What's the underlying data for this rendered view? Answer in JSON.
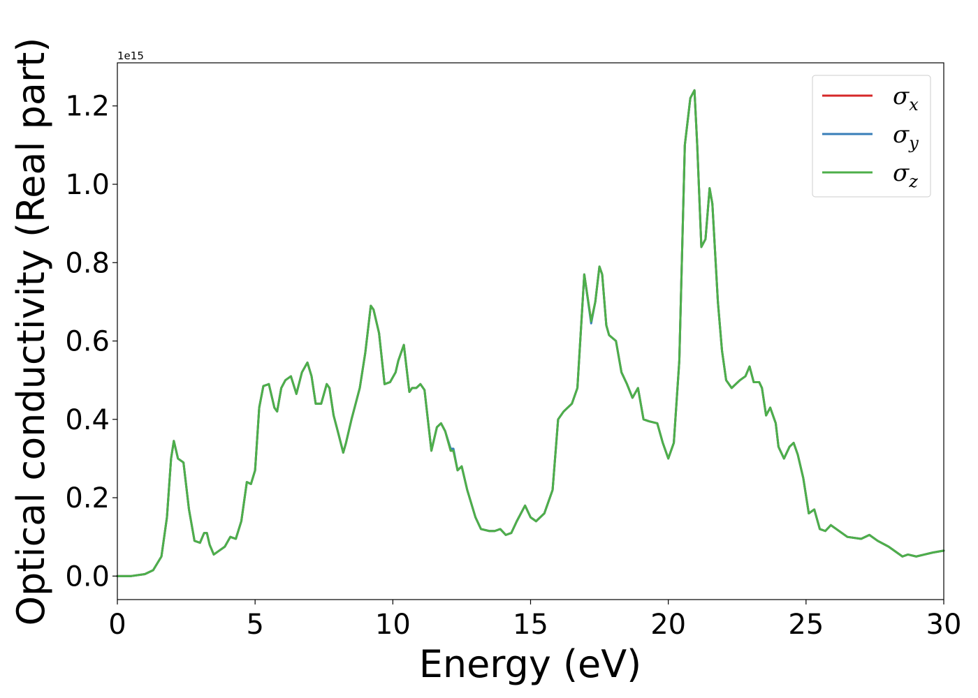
{
  "chart_data": {
    "type": "line",
    "title": "",
    "xlabel": "Energy (eV)",
    "ylabel": "Optical conductivity (Real part)",
    "y_offset_label": "1e15",
    "y_unit_scale": 1000000000000000.0,
    "xlim": [
      0,
      30
    ],
    "ylim": [
      -0.06,
      1.31
    ],
    "xticks": [
      0,
      5,
      10,
      15,
      20,
      25,
      30
    ],
    "xtick_labels": [
      "0",
      "5",
      "10",
      "15",
      "20",
      "25",
      "30"
    ],
    "yticks": [
      0.0,
      0.2,
      0.4,
      0.6,
      0.8,
      1.0,
      1.2
    ],
    "ytick_labels": [
      "0.0",
      "0.2",
      "0.4",
      "0.6",
      "0.8",
      "1.0",
      "1.2"
    ],
    "grid": false,
    "legend_position": "top-right",
    "x": [
      0,
      0.5,
      1.0,
      1.3,
      1.6,
      1.8,
      1.95,
      2.05,
      2.2,
      2.4,
      2.6,
      2.8,
      3.0,
      3.15,
      3.25,
      3.35,
      3.5,
      3.7,
      3.9,
      4.1,
      4.3,
      4.5,
      4.7,
      4.85,
      5.0,
      5.15,
      5.3,
      5.5,
      5.7,
      5.8,
      5.95,
      6.1,
      6.3,
      6.5,
      6.7,
      6.9,
      7.05,
      7.2,
      7.4,
      7.6,
      7.7,
      7.85,
      8.0,
      8.2,
      8.3,
      8.5,
      8.8,
      9.0,
      9.2,
      9.3,
      9.5,
      9.7,
      9.9,
      10.1,
      10.2,
      10.4,
      10.6,
      10.7,
      10.85,
      11.0,
      11.15,
      11.4,
      11.6,
      11.75,
      11.9,
      12.1,
      12.2,
      12.35,
      12.5,
      12.7,
      13.0,
      13.2,
      13.5,
      13.7,
      13.9,
      14.1,
      14.3,
      14.5,
      14.8,
      15.0,
      15.2,
      15.5,
      15.8,
      16.0,
      16.2,
      16.5,
      16.7,
      16.95,
      17.2,
      17.35,
      17.5,
      17.6,
      17.75,
      17.85,
      18.1,
      18.3,
      18.5,
      18.7,
      18.9,
      19.1,
      19.3,
      19.6,
      19.8,
      20.0,
      20.2,
      20.4,
      20.6,
      20.8,
      20.95,
      21.05,
      21.2,
      21.35,
      21.5,
      21.6,
      21.8,
      21.95,
      22.1,
      22.3,
      22.6,
      22.8,
      22.95,
      23.1,
      23.3,
      23.4,
      23.55,
      23.7,
      23.9,
      24.0,
      24.2,
      24.4,
      24.55,
      24.7,
      24.9,
      25.1,
      25.3,
      25.5,
      25.7,
      25.9,
      26.1,
      26.5,
      27.0,
      27.3,
      27.6,
      28.0,
      28.5,
      28.7,
      29.0,
      29.3,
      29.6,
      30.0
    ],
    "series": [
      {
        "name": "x",
        "color": "#d62728",
        "values": [
          0.0,
          0.0,
          0.005,
          0.015,
          0.05,
          0.15,
          0.3,
          0.345,
          0.3,
          0.29,
          0.17,
          0.09,
          0.085,
          0.11,
          0.11,
          0.08,
          0.055,
          0.065,
          0.075,
          0.1,
          0.095,
          0.14,
          0.24,
          0.235,
          0.27,
          0.43,
          0.485,
          0.49,
          0.43,
          0.42,
          0.48,
          0.5,
          0.51,
          0.465,
          0.52,
          0.545,
          0.51,
          0.44,
          0.44,
          0.49,
          0.48,
          0.41,
          0.37,
          0.315,
          0.34,
          0.4,
          0.48,
          0.57,
          0.69,
          0.68,
          0.62,
          0.49,
          0.495,
          0.52,
          0.55,
          0.59,
          0.47,
          0.48,
          0.48,
          0.49,
          0.475,
          0.32,
          0.38,
          0.39,
          0.37,
          0.32,
          0.32,
          0.27,
          0.28,
          0.22,
          0.15,
          0.12,
          0.115,
          0.115,
          0.12,
          0.105,
          0.11,
          0.14,
          0.18,
          0.15,
          0.14,
          0.16,
          0.22,
          0.4,
          0.42,
          0.44,
          0.48,
          0.77,
          0.65,
          0.7,
          0.79,
          0.77,
          0.64,
          0.615,
          0.6,
          0.52,
          0.49,
          0.455,
          0.48,
          0.4,
          0.395,
          0.39,
          0.34,
          0.3,
          0.34,
          0.55,
          1.1,
          1.22,
          1.24,
          1.1,
          0.84,
          0.86,
          0.99,
          0.95,
          0.7,
          0.575,
          0.5,
          0.48,
          0.5,
          0.51,
          0.535,
          0.495,
          0.495,
          0.48,
          0.41,
          0.43,
          0.39,
          0.33,
          0.3,
          0.33,
          0.34,
          0.31,
          0.25,
          0.16,
          0.17,
          0.12,
          0.115,
          0.13,
          0.12,
          0.1,
          0.095,
          0.105,
          0.09,
          0.075,
          0.05,
          0.055,
          0.05,
          0.055,
          0.06,
          0.065
        ]
      },
      {
        "name": "y",
        "color": "#377eb8",
        "values": [
          0.0,
          0.0,
          0.005,
          0.015,
          0.05,
          0.15,
          0.3,
          0.345,
          0.3,
          0.29,
          0.17,
          0.09,
          0.085,
          0.11,
          0.11,
          0.08,
          0.055,
          0.065,
          0.075,
          0.1,
          0.095,
          0.14,
          0.24,
          0.235,
          0.27,
          0.43,
          0.485,
          0.49,
          0.43,
          0.42,
          0.48,
          0.5,
          0.51,
          0.465,
          0.52,
          0.545,
          0.51,
          0.44,
          0.44,
          0.49,
          0.48,
          0.41,
          0.37,
          0.315,
          0.34,
          0.4,
          0.48,
          0.57,
          0.69,
          0.68,
          0.62,
          0.49,
          0.495,
          0.52,
          0.55,
          0.59,
          0.47,
          0.48,
          0.48,
          0.49,
          0.475,
          0.32,
          0.38,
          0.39,
          0.37,
          0.325,
          0.325,
          0.27,
          0.28,
          0.22,
          0.15,
          0.12,
          0.115,
          0.115,
          0.12,
          0.105,
          0.11,
          0.14,
          0.18,
          0.15,
          0.14,
          0.16,
          0.22,
          0.4,
          0.42,
          0.44,
          0.48,
          0.77,
          0.645,
          0.7,
          0.79,
          0.77,
          0.64,
          0.615,
          0.6,
          0.52,
          0.49,
          0.455,
          0.48,
          0.4,
          0.395,
          0.39,
          0.34,
          0.3,
          0.34,
          0.55,
          1.1,
          1.22,
          1.24,
          1.1,
          0.84,
          0.86,
          0.99,
          0.95,
          0.7,
          0.575,
          0.5,
          0.48,
          0.5,
          0.51,
          0.535,
          0.495,
          0.495,
          0.48,
          0.41,
          0.43,
          0.39,
          0.33,
          0.3,
          0.33,
          0.34,
          0.31,
          0.25,
          0.16,
          0.17,
          0.12,
          0.115,
          0.13,
          0.12,
          0.1,
          0.095,
          0.105,
          0.09,
          0.075,
          0.05,
          0.055,
          0.05,
          0.055,
          0.06,
          0.065
        ]
      },
      {
        "name": "z",
        "color": "#4daf4a",
        "values": [
          0.0,
          0.0,
          0.005,
          0.015,
          0.05,
          0.15,
          0.3,
          0.345,
          0.3,
          0.29,
          0.17,
          0.09,
          0.085,
          0.11,
          0.11,
          0.08,
          0.055,
          0.065,
          0.075,
          0.1,
          0.095,
          0.14,
          0.24,
          0.235,
          0.27,
          0.43,
          0.485,
          0.49,
          0.43,
          0.42,
          0.48,
          0.5,
          0.51,
          0.465,
          0.52,
          0.545,
          0.51,
          0.44,
          0.44,
          0.49,
          0.48,
          0.41,
          0.37,
          0.315,
          0.34,
          0.4,
          0.48,
          0.57,
          0.69,
          0.68,
          0.62,
          0.49,
          0.495,
          0.52,
          0.55,
          0.59,
          0.47,
          0.48,
          0.48,
          0.49,
          0.475,
          0.32,
          0.38,
          0.39,
          0.37,
          0.32,
          0.32,
          0.27,
          0.28,
          0.22,
          0.15,
          0.12,
          0.115,
          0.115,
          0.12,
          0.105,
          0.11,
          0.14,
          0.18,
          0.15,
          0.14,
          0.16,
          0.22,
          0.4,
          0.42,
          0.44,
          0.48,
          0.77,
          0.65,
          0.7,
          0.79,
          0.77,
          0.64,
          0.615,
          0.6,
          0.52,
          0.49,
          0.455,
          0.48,
          0.4,
          0.395,
          0.39,
          0.34,
          0.3,
          0.34,
          0.55,
          1.1,
          1.22,
          1.24,
          1.1,
          0.84,
          0.86,
          0.99,
          0.95,
          0.7,
          0.575,
          0.5,
          0.48,
          0.5,
          0.51,
          0.535,
          0.495,
          0.495,
          0.48,
          0.41,
          0.43,
          0.39,
          0.33,
          0.3,
          0.33,
          0.34,
          0.31,
          0.25,
          0.16,
          0.17,
          0.12,
          0.115,
          0.13,
          0.12,
          0.1,
          0.095,
          0.105,
          0.09,
          0.075,
          0.05,
          0.055,
          0.05,
          0.055,
          0.06,
          0.065
        ]
      }
    ],
    "legend": [
      {
        "symbol": "σ",
        "subscript": "x",
        "color": "#d62728"
      },
      {
        "symbol": "σ",
        "subscript": "y",
        "color": "#377eb8"
      },
      {
        "symbol": "σ",
        "subscript": "z",
        "color": "#4daf4a"
      }
    ]
  }
}
